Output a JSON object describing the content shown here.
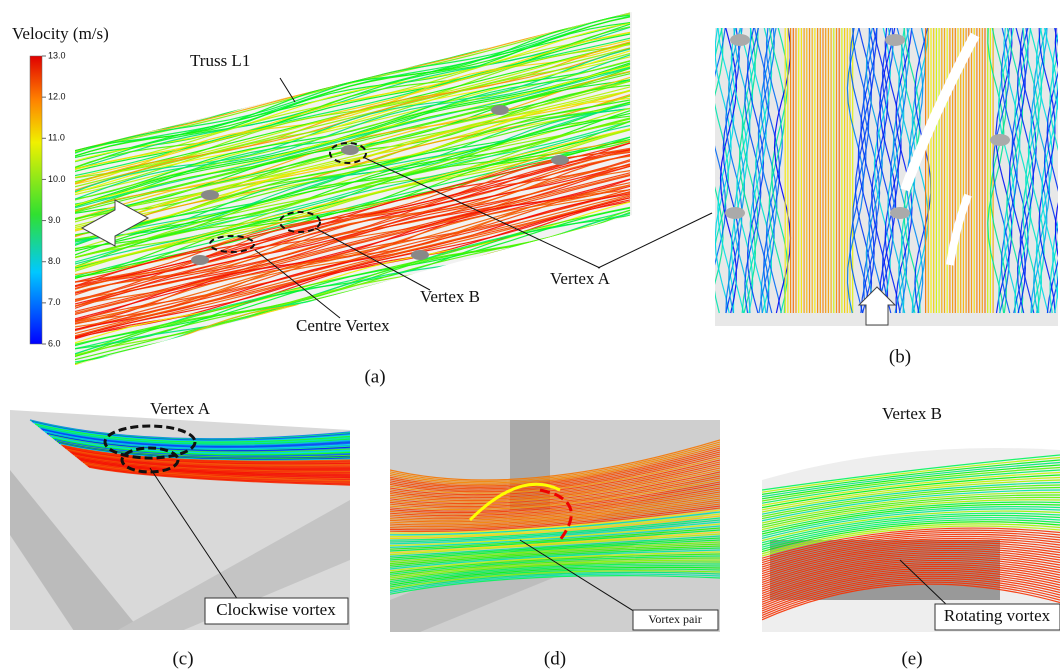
{
  "colorbar": {
    "title": "Velocity (m/s)",
    "range": [
      6,
      13
    ],
    "ticks": [
      {
        "value": 13,
        "label": "13.0"
      },
      {
        "value": 12,
        "label": "12.0"
      },
      {
        "value": 11,
        "label": "11.0"
      },
      {
        "value": 10,
        "label": "10.0"
      },
      {
        "value": 9,
        "label": "9.0"
      },
      {
        "value": 8,
        "label": "8.0"
      },
      {
        "value": 7,
        "label": "7.0"
      },
      {
        "value": 6,
        "label": "6.0"
      }
    ]
  },
  "panels": {
    "a": {
      "label": "(a)",
      "annotations": [
        "Truss L1",
        "Vertex A",
        "Vertex B",
        "Centre Vertex"
      ]
    },
    "b": {
      "label": "(b)"
    },
    "c": {
      "label": "(c)",
      "title": "Vertex A",
      "note": "Clockwise vortex"
    },
    "d": {
      "label": "(d)",
      "note": "Vortex pair"
    },
    "e": {
      "label": "(e)",
      "title": "Vertex B",
      "note": "Rotating vortex"
    }
  }
}
